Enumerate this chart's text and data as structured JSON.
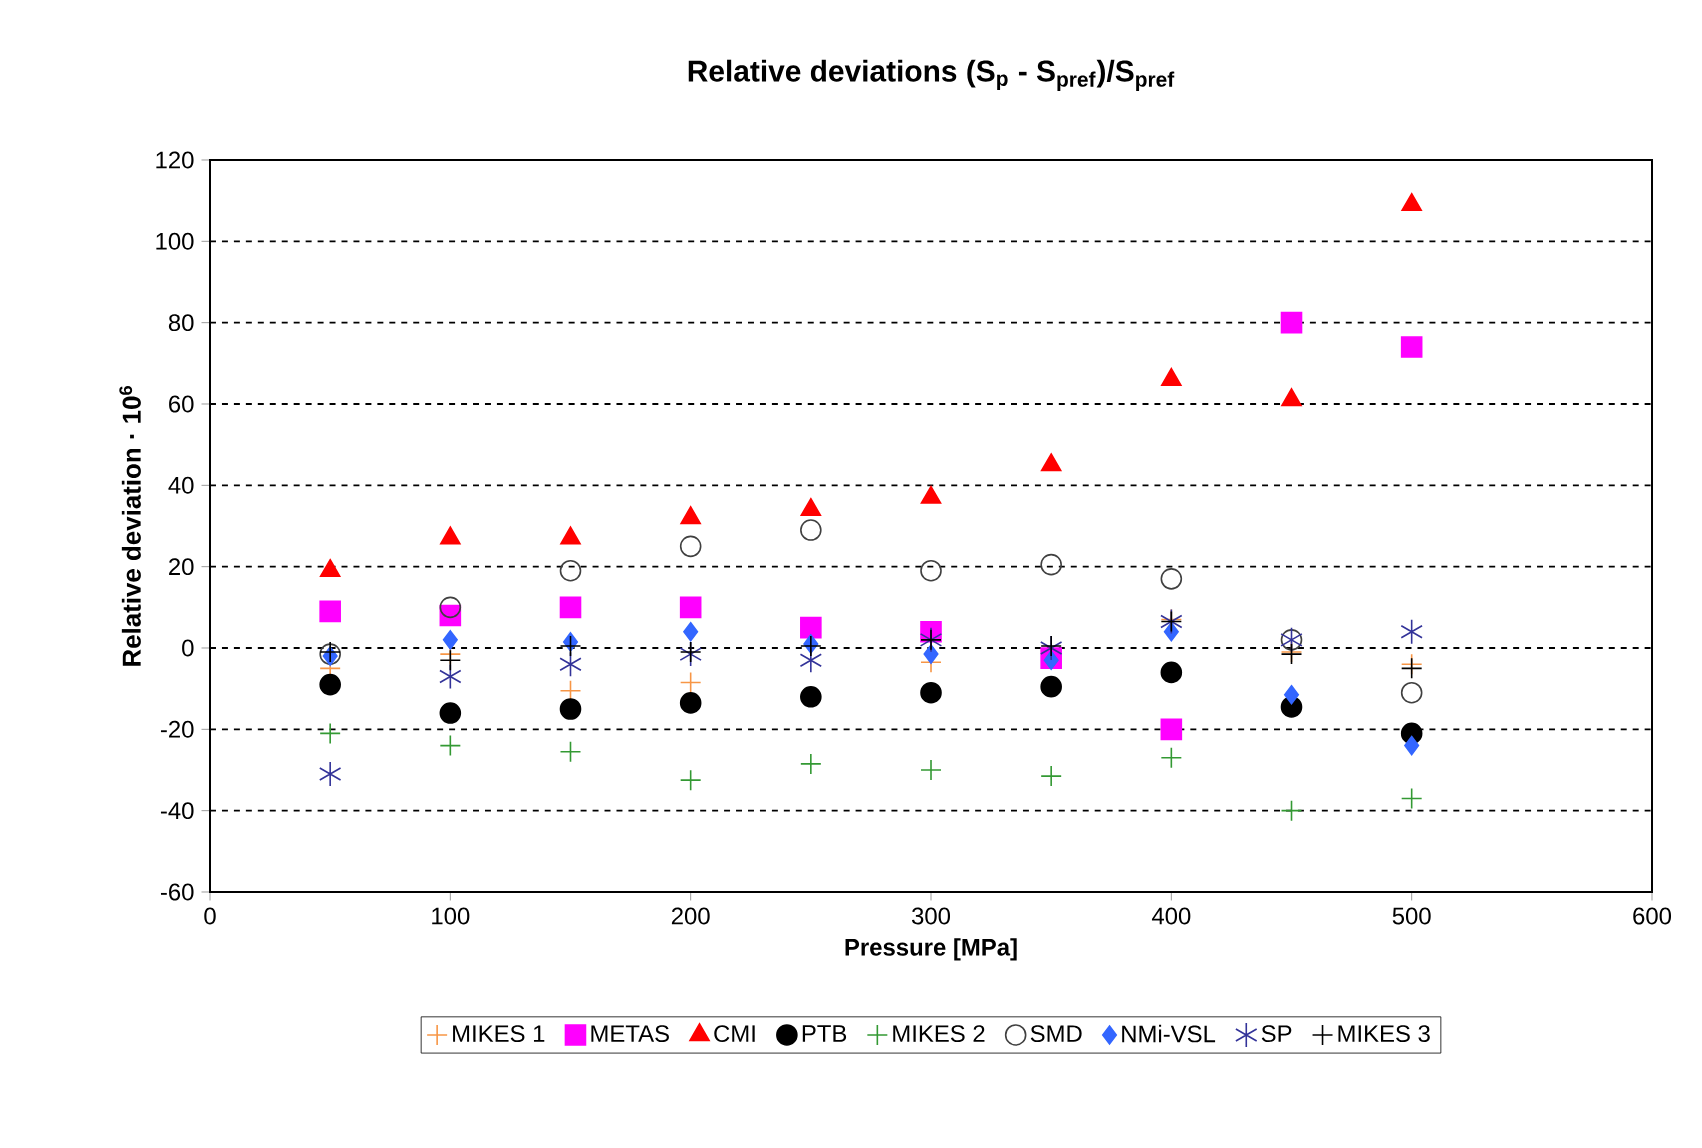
{
  "chart_data": {
    "type": "scatter",
    "title": "Relative deviations (S$_{p}$ - S$_{pref}$)/S$_{pref}$",
    "xlabel": "Pressure [MPa]",
    "ylabel": "Relative deviation · 10$^{6}$",
    "x": [
      50,
      100,
      150,
      200,
      250,
      300,
      350,
      400,
      450,
      500
    ],
    "xlim": [
      0,
      600
    ],
    "xticks": [
      0,
      100,
      200,
      300,
      400,
      500,
      600
    ],
    "ylim": [
      -60,
      120
    ],
    "yticks": [
      -60,
      -40,
      -20,
      0,
      20,
      40,
      60,
      80,
      100,
      120
    ],
    "grid": "y",
    "legend": "bottom",
    "series": [
      {
        "name": "MIKES 1",
        "color": "#f79646",
        "marker": "cross",
        "values": [
          -5,
          -1.5,
          -10.5,
          -8.5,
          null,
          -3.5,
          null,
          7,
          -1,
          -4
        ]
      },
      {
        "name": "METAS",
        "color": "#ff00ff",
        "marker": "square",
        "values": [
          9,
          8,
          10,
          10,
          5,
          4,
          -2.5,
          -20,
          80,
          74
        ]
      },
      {
        "name": "CMI",
        "color": "#ff0000",
        "marker": "triangle",
        "values": [
          19,
          27,
          27,
          32,
          34,
          37,
          45,
          66,
          61,
          109
        ]
      },
      {
        "name": "PTB",
        "color": "#000000",
        "marker": "circle",
        "values": [
          -9,
          -16,
          -15,
          -13.5,
          -12,
          -11,
          -9.5,
          -6,
          -14.5,
          -21
        ]
      },
      {
        "name": "MIKES 2",
        "color": "#339933",
        "marker": "cross",
        "values": [
          -21,
          -24,
          -25.5,
          -32.5,
          -28.5,
          -30,
          -31.5,
          -27,
          -40,
          -37
        ]
      },
      {
        "name": "SMD",
        "color": "#404040",
        "marker": "circle",
        "values": [
          -1.5,
          10,
          19,
          25,
          29,
          19,
          20.5,
          17,
          2,
          -11
        ]
      },
      {
        "name": "NMi-VSL",
        "color": "#3366ff",
        "marker": "diamond",
        "values": [
          -2,
          2,
          1.5,
          4,
          1,
          -1.5,
          -3,
          4,
          -11.5,
          -24
        ]
      },
      {
        "name": "SP",
        "color": "#333399",
        "values": [
          -31,
          -7,
          -4,
          -1.5,
          -3,
          2,
          0,
          6.5,
          2,
          4
        ]
      },
      {
        "name": "MIKES 3",
        "color": "#000000",
        "marker": "cross",
        "values": [
          -1,
          -3,
          0.5,
          -1,
          0.5,
          2,
          0.5,
          6.5,
          -1.5,
          -5
        ]
      }
    ]
  }
}
